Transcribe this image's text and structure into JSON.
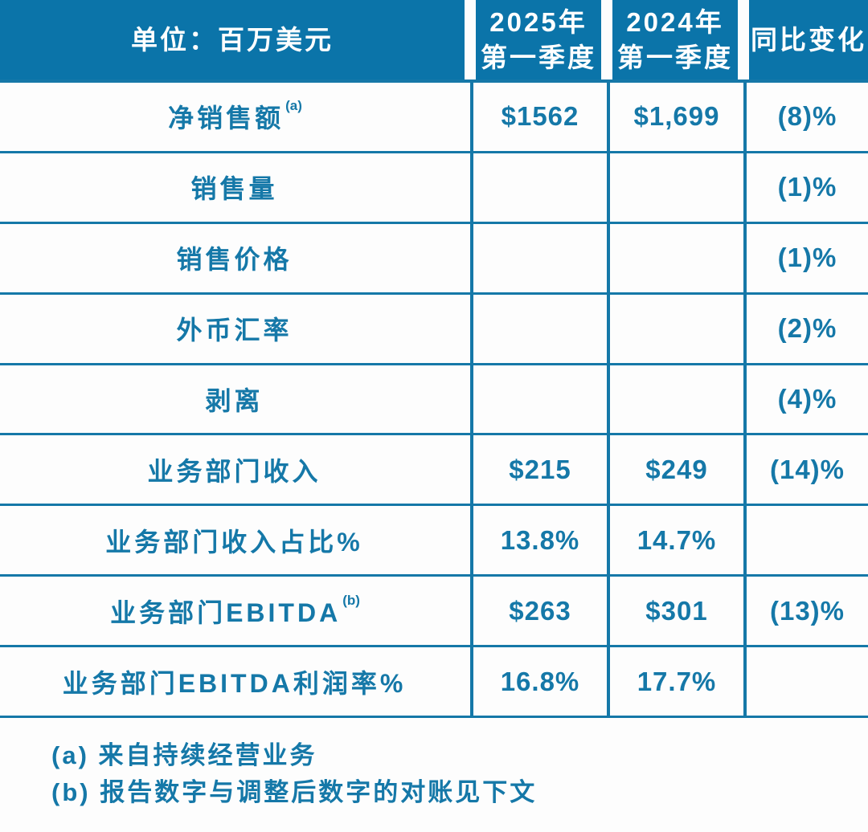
{
  "colors": {
    "header_bg": "#0b74a9",
    "text": "#1578a8",
    "border": "#1578a8"
  },
  "table": {
    "unit_label": "单位：百万美元",
    "columns": [
      {
        "line1": "2025年",
        "line2": "第一季度"
      },
      {
        "line1": "2024年",
        "line2": "第一季度"
      },
      {
        "line1": "同比变化",
        "line2": ""
      }
    ],
    "rows": [
      {
        "label": "净销售额",
        "sup": "(a)",
        "v2025": "$1562",
        "v2024": "$1,699",
        "change": "(8)%"
      },
      {
        "label": "销售量",
        "v2025": "",
        "v2024": "",
        "change": "(1)%"
      },
      {
        "label": "销售价格",
        "v2025": "",
        "v2024": "",
        "change": "(1)%"
      },
      {
        "label": "外币汇率",
        "v2025": "",
        "v2024": "",
        "change": "(2)%"
      },
      {
        "label": "剥离",
        "v2025": "",
        "v2024": "",
        "change": "(4)%"
      },
      {
        "label": "业务部门收入",
        "v2025": "$215",
        "v2024": "$249",
        "change": "(14)%"
      },
      {
        "label": "业务部门收入占比%",
        "v2025": "13.8%",
        "v2024": "14.7%",
        "change": ""
      },
      {
        "label": "业务部门EBITDA",
        "sup": "(b)",
        "v2025": "$263",
        "v2024": "$301",
        "change": "(13)%"
      },
      {
        "label": "业务部门EBITDA利润率%",
        "v2025": "16.8%",
        "v2024": "17.7%",
        "change": ""
      }
    ]
  },
  "footnotes": [
    "(a) 来自持续经营业务",
    "(b) 报告数字与调整后数字的对账见下文"
  ],
  "chart_data": {
    "type": "table",
    "title": "单位：百万美元",
    "column_headers": [
      "单位：百万美元",
      "2025年第一季度",
      "2024年第一季度",
      "同比变化"
    ],
    "rows": [
      [
        "净销售额(a)",
        "$1562",
        "$1,699",
        "(8)%"
      ],
      [
        "销售量",
        "",
        "",
        "(1)%"
      ],
      [
        "销售价格",
        "",
        "",
        "(1)%"
      ],
      [
        "外币汇率",
        "",
        "",
        "(2)%"
      ],
      [
        "剥离",
        "",
        "",
        "(4)%"
      ],
      [
        "业务部门收入",
        "$215",
        "$249",
        "(14)%"
      ],
      [
        "业务部门收入占比%",
        "13.8%",
        "14.7%",
        ""
      ],
      [
        "业务部门EBITDA(b)",
        "$263",
        "$301",
        "(13)%"
      ],
      [
        "业务部门EBITDA利润率%",
        "16.8%",
        "17.7%",
        ""
      ]
    ],
    "footnotes": [
      "(a) 来自持续经营业务",
      "(b) 报告数字与调整后数字的对账见下文"
    ]
  }
}
